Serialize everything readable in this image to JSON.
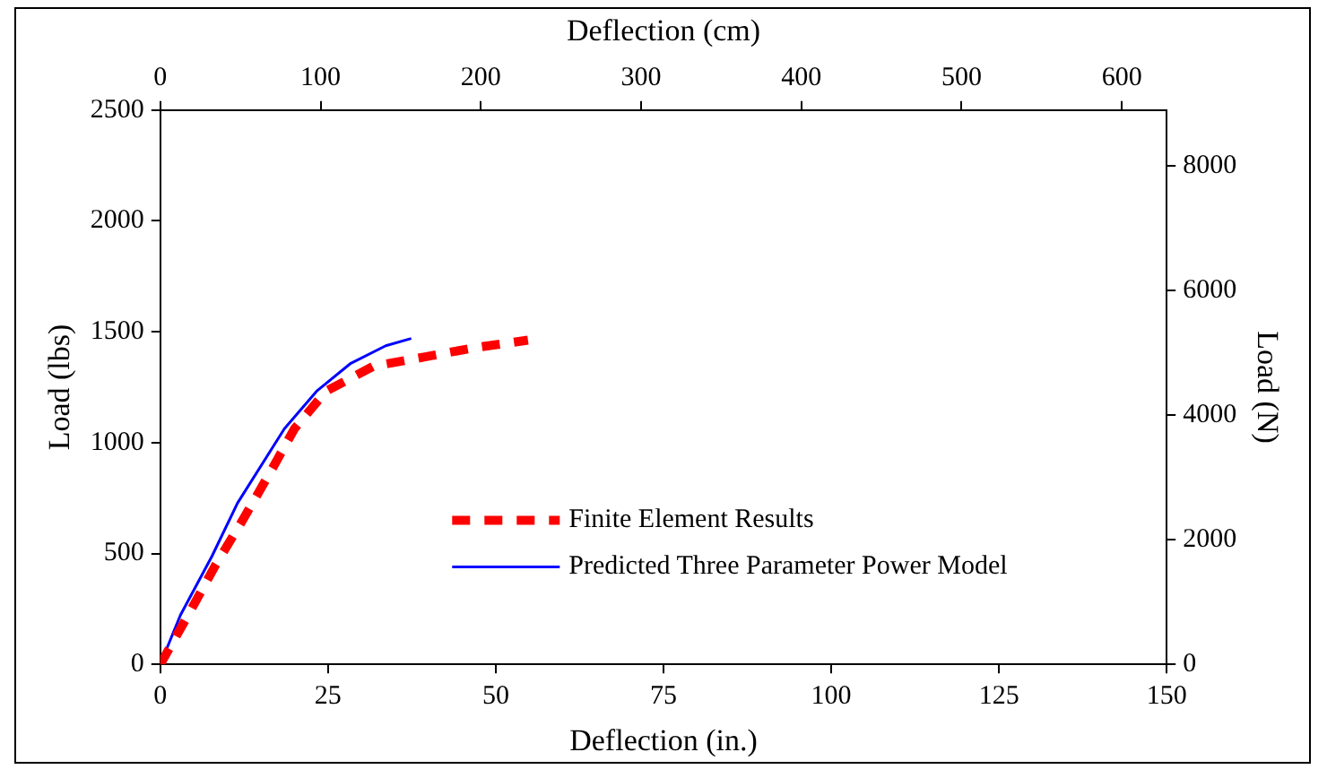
{
  "chart_data": {
    "type": "line",
    "xlabel": "Deflection (in.)",
    "ylabel": "Load (lbs)",
    "y2label": "Load (N)",
    "x2label": "Deflection (cm)",
    "xlim": [
      0,
      150
    ],
    "xticks": [
      0,
      25,
      50,
      75,
      100,
      125,
      150
    ],
    "ylim": [
      0,
      2500
    ],
    "yticks": [
      0,
      500,
      1000,
      1500,
      2000,
      2500
    ],
    "y2lim": [
      0,
      8900
    ],
    "y2ticks": [
      0,
      2000,
      4000,
      6000,
      8000
    ],
    "x2lim": [
      0,
      628
    ],
    "x2ticks": [
      0,
      100,
      200,
      300,
      400,
      500,
      600
    ],
    "grid": false,
    "legend": "right",
    "marker": "none",
    "series": [
      {
        "name": "Finite Element Results",
        "color": "#ff0000",
        "line_style": "dashed",
        "x": [
          0,
          4.4,
          8.2,
          12.4,
          16.4,
          20.0,
          24.7,
          31.7,
          39.3,
          46.8,
          54.8
        ],
        "values": [
          0,
          236,
          446,
          657,
          867,
          1063,
          1232,
          1344,
          1386,
          1428,
          1462
        ]
      },
      {
        "name": "Predicted Three Parameter Power Model",
        "color": "#0000ff",
        "line_style": "solid",
        "x": [
          0,
          3.0,
          7.7,
          11.5,
          18.5,
          23.3,
          28.4,
          33.6,
          37.4
        ],
        "values": [
          0,
          222,
          488,
          727,
          1063,
          1232,
          1358,
          1437,
          1470
        ]
      }
    ]
  }
}
